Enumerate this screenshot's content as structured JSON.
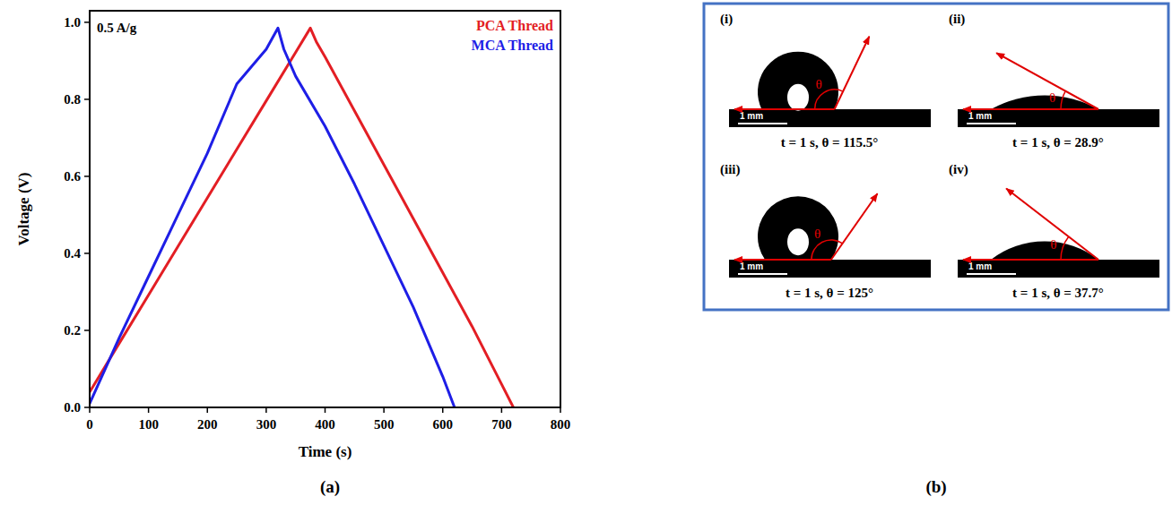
{
  "chart_data": {
    "type": "line",
    "panel_label": "(a)",
    "annotation": "0.5 A/g",
    "x_label": "Time (s)",
    "y_label": "Voltage (V)",
    "xlim": [
      0,
      800
    ],
    "xticks": [
      0,
      100,
      200,
      300,
      400,
      500,
      600,
      700,
      800
    ],
    "ylim": [
      0,
      1.03
    ],
    "yticks": [
      {
        "value": 0,
        "label": "0.0"
      },
      0.2,
      0.4,
      0.6,
      0.8,
      {
        "value": 1,
        "label": "1.0"
      }
    ],
    "grid": false,
    "legend": "upper right",
    "series": [
      {
        "name": "PCA Thread",
        "color": "#e31e24",
        "x": [
          0,
          50,
          100,
          150,
          200,
          250,
          300,
          350,
          375,
          385,
          400,
          450,
          500,
          550,
          600,
          650,
          700,
          720
        ],
        "values": [
          0.04,
          0.166,
          0.292,
          0.418,
          0.544,
          0.67,
          0.796,
          0.922,
          0.985,
          0.95,
          0.91,
          0.77,
          0.63,
          0.49,
          0.35,
          0.21,
          0.06,
          0.0
        ]
      },
      {
        "name": "MCA Thread",
        "color": "#1e1ee6",
        "x": [
          0,
          50,
          100,
          150,
          200,
          250,
          300,
          320,
          330,
          350,
          400,
          450,
          500,
          550,
          600,
          620
        ],
        "values": [
          0.01,
          0.18,
          0.34,
          0.5,
          0.66,
          0.84,
          0.93,
          0.985,
          0.93,
          0.86,
          0.73,
          0.58,
          0.42,
          0.26,
          0.08,
          0.0
        ]
      }
    ]
  },
  "panels": {
    "b": {
      "label": "(b)",
      "angle_symbol": "θ",
      "images": [
        {
          "label": "(i)",
          "caption": "t = 1 s, θ = 115.5°",
          "angle": 115.5,
          "scale_bar": "1 mm"
        },
        {
          "label": "(ii)",
          "caption": "t = 1 s, θ = 28.9°",
          "angle": 28.9,
          "scale_bar": "1 mm"
        },
        {
          "label": "(iii)",
          "caption": "t = 1 s, θ = 125°",
          "angle": 125,
          "scale_bar": "1 mm"
        },
        {
          "label": "(iv)",
          "caption": "t = 1 s, θ = 37.7°",
          "angle": 37.7,
          "scale_bar": "1 mm"
        }
      ]
    }
  }
}
